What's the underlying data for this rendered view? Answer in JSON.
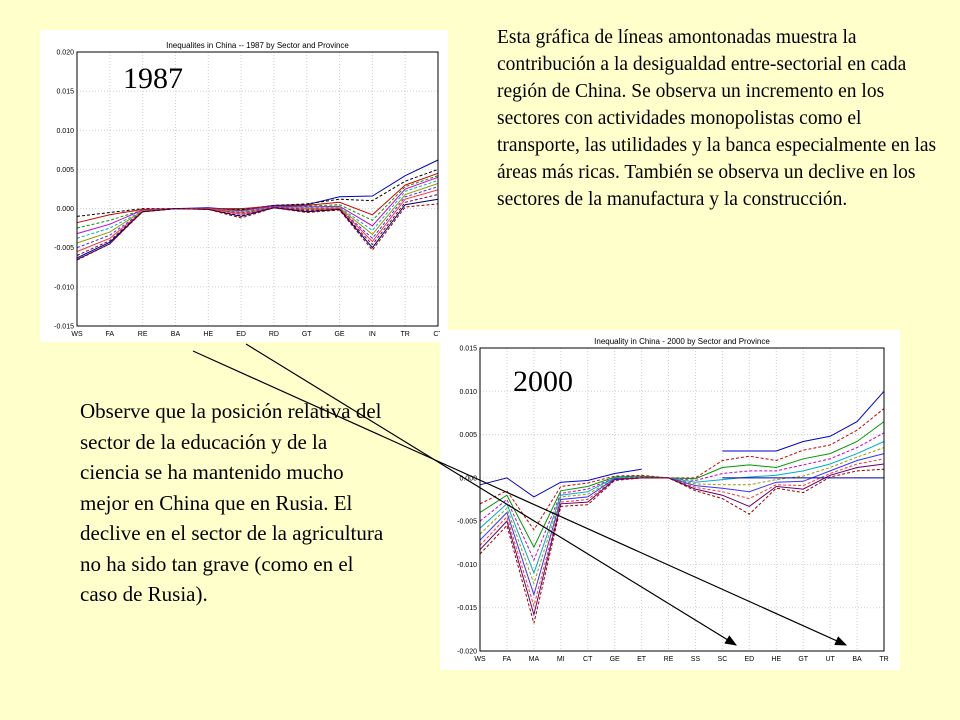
{
  "chart_data": [
    {
      "type": "line",
      "title": "Inequalites in China -- 1987 by Sector and Province",
      "year_label": "1987",
      "categories": [
        "WS",
        "FA",
        "RE",
        "BA",
        "HE",
        "ED",
        "RD",
        "GT",
        "GE",
        "IN",
        "TR",
        "CT"
      ],
      "ylim": [
        -0.015,
        0.02
      ],
      "yticks": [
        "0.020",
        "0.015",
        "0.010",
        "0.005",
        "0.000",
        "-0.005",
        "-0.010",
        "-0.015"
      ],
      "ytick_values": [
        0.02,
        0.015,
        0.01,
        0.005,
        0.0,
        -0.005,
        -0.01,
        -0.015
      ],
      "grid": true,
      "series": [
        {
          "color": "#0000cc",
          "values": [
            -0.0065,
            -0.0045,
            -0.0003,
            0.0,
            0.0001,
            -0.0002,
            0.0004,
            0.0005,
            0.0015,
            0.0016,
            0.0042,
            0.0062
          ]
        },
        {
          "color": "#000000",
          "values": [
            -0.001,
            -0.0005,
            0.0,
            0.0,
            0.0,
            -0.0001,
            0.0004,
            0.0006,
            0.0012,
            0.001,
            0.0035,
            0.005
          ]
        },
        {
          "color": "#cc0000",
          "values": [
            -0.0018,
            -0.0008,
            -0.0001,
            0.0,
            0.0,
            0.0,
            0.0003,
            0.0004,
            0.0008,
            -0.0008,
            0.003,
            0.0045
          ]
        },
        {
          "color": "#009900",
          "values": [
            -0.0025,
            -0.0015,
            -0.0002,
            0.0,
            0.0,
            -0.0002,
            0.0003,
            0.0003,
            0.0005,
            -0.0015,
            0.0028,
            0.0042
          ]
        },
        {
          "color": "#cc00cc",
          "values": [
            -0.0032,
            -0.002,
            -0.0002,
            0.0,
            0.0,
            -0.0003,
            0.0003,
            0.0002,
            0.0003,
            -0.0022,
            0.0025,
            0.004
          ]
        },
        {
          "color": "#00aacc",
          "values": [
            -0.0038,
            -0.0025,
            -0.0003,
            0.0,
            0.0,
            -0.0004,
            0.0002,
            0.0001,
            0.0002,
            -0.0028,
            0.0022,
            0.0036
          ]
        },
        {
          "color": "#999900",
          "values": [
            -0.0044,
            -0.003,
            -0.0003,
            0.0,
            0.0,
            -0.0005,
            0.0002,
            0.0,
            0.0001,
            -0.0033,
            0.0018,
            0.0032
          ]
        },
        {
          "color": "#3333ff",
          "values": [
            -0.005,
            -0.0034,
            -0.0004,
            0.0,
            0.0,
            -0.0006,
            0.0002,
            -0.0001,
            0.0,
            -0.0038,
            0.0015,
            0.0028
          ]
        },
        {
          "color": "#ff3333",
          "values": [
            -0.0055,
            -0.0038,
            -0.0004,
            0.0,
            0.0,
            -0.0007,
            0.0001,
            -0.0002,
            0.0,
            -0.0042,
            0.0012,
            0.0024
          ]
        },
        {
          "color": "#660066",
          "values": [
            -0.006,
            -0.0041,
            -0.0004,
            0.0,
            -0.0001,
            -0.0009,
            0.0001,
            -0.0003,
            -0.0001,
            -0.0046,
            0.0008,
            0.0018
          ]
        },
        {
          "color": "#000066",
          "values": [
            -0.0063,
            -0.0043,
            -0.0004,
            0.0,
            -0.0001,
            -0.001,
            0.0001,
            -0.0004,
            -0.0001,
            -0.005,
            0.0005,
            0.0012
          ]
        },
        {
          "color": "#990000",
          "values": [
            -0.0066,
            -0.0045,
            -0.0004,
            0.0,
            -0.0001,
            -0.0012,
            0.0001,
            -0.0005,
            -0.0002,
            -0.0053,
            0.0002,
            0.0006
          ]
        }
      ]
    },
    {
      "type": "line",
      "title": "Inequality in China - 2000 by Sector and Province",
      "year_label": "2000",
      "categories": [
        "WS",
        "FA",
        "MA",
        "MI",
        "CT",
        "GE",
        "ET",
        "RE",
        "SS",
        "SC",
        "ED",
        "HE",
        "GT",
        "UT",
        "BA",
        "TR"
      ],
      "ylim": [
        -0.02,
        0.015
      ],
      "yticks": [
        "0.015",
        "0.010",
        "0.005",
        "0.000",
        "-0.005",
        "-0.010",
        "-0.015",
        "-0.020"
      ],
      "ytick_values": [
        0.015,
        0.01,
        0.005,
        0.0,
        -0.005,
        -0.01,
        -0.015,
        -0.02
      ],
      "grid": true,
      "segment_breaks": [
        6
      ],
      "series": [
        {
          "color": "#0000cc",
          "values": [
            -0.0008,
            0.0,
            -0.0022,
            -0.0005,
            -0.0003,
            0.0005,
            0.001,
            null,
            null,
            0.0031,
            0.0031,
            0.0031,
            0.0042,
            0.0048,
            0.0065,
            0.01
          ]
        },
        {
          "color": "#cc0000",
          "values": [
            -0.003,
            -0.0015,
            -0.006,
            -0.001,
            -0.0006,
            0.0002,
            0.0003,
            0.0,
            0.0,
            0.002,
            0.0025,
            0.002,
            0.0032,
            0.0038,
            0.0055,
            0.008
          ]
        },
        {
          "color": "#009900",
          "values": [
            -0.004,
            -0.002,
            -0.008,
            -0.0015,
            -0.001,
            0.0001,
            0.0002,
            0.0,
            -0.0001,
            0.0012,
            0.0015,
            0.0012,
            0.0022,
            0.0028,
            0.0042,
            0.0065
          ]
        },
        {
          "color": "#cc00cc",
          "values": [
            -0.005,
            -0.0025,
            -0.0095,
            -0.0018,
            -0.0013,
            0.0,
            0.0001,
            0.0,
            -0.0003,
            0.0005,
            0.0008,
            0.0008,
            0.0015,
            0.0022,
            0.0035,
            0.0052
          ]
        },
        {
          "color": "#00aacc",
          "values": [
            -0.0058,
            -0.003,
            -0.011,
            -0.002,
            -0.0016,
            0.0,
            0.0,
            0.0,
            -0.0005,
            -0.0002,
            0.0001,
            0.0003,
            0.0008,
            0.0016,
            0.0028,
            0.0042
          ]
        },
        {
          "color": "#999900",
          "values": [
            -0.0065,
            -0.0035,
            -0.0122,
            -0.0022,
            -0.0019,
            -0.0001,
            0.0,
            0.0,
            -0.0007,
            -0.0008,
            -0.0008,
            -0.0002,
            0.0002,
            0.0012,
            0.0024,
            0.0035
          ]
        },
        {
          "color": "#3333ff",
          "values": [
            -0.0072,
            -0.004,
            -0.0135,
            -0.0025,
            -0.0022,
            -0.0001,
            0.0,
            0.0,
            -0.0009,
            -0.0012,
            -0.0016,
            -0.0005,
            -0.0004,
            0.0008,
            0.002,
            0.0028
          ]
        },
        {
          "color": "#ff3333",
          "values": [
            -0.0078,
            -0.0045,
            -0.0148,
            -0.0028,
            -0.0025,
            -0.0002,
            0.0,
            0.0,
            -0.0011,
            -0.0016,
            -0.0024,
            -0.0008,
            -0.0009,
            0.0005,
            0.0016,
            0.0022
          ]
        },
        {
          "color": "#660066",
          "values": [
            -0.0083,
            -0.005,
            -0.0158,
            -0.003,
            -0.0028,
            -0.0002,
            0.0,
            0.0,
            -0.0013,
            -0.002,
            -0.0033,
            -0.001,
            -0.0013,
            0.0003,
            0.0012,
            0.0016
          ]
        },
        {
          "color": "#990000",
          "values": [
            -0.0088,
            -0.0055,
            -0.0168,
            -0.0033,
            -0.0031,
            -0.0003,
            0.0,
            0.0,
            -0.0015,
            -0.0024,
            -0.0042,
            -0.0012,
            -0.0017,
            0.0001,
            0.0008,
            0.001
          ]
        },
        {
          "color": "#0000aa",
          "values": [
            null,
            null,
            null,
            null,
            null,
            null,
            null,
            null,
            null,
            0.0,
            0.0,
            0.0,
            0.0,
            0.0,
            0.0,
            0.0
          ]
        }
      ]
    }
  ],
  "text": {
    "top_paragraph": "Esta gráfica de líneas amontonadas muestra la contribución a la desigualdad entre-sectorial en cada región de China.  Se observa un incremento en los sectores con actividades monopolistas como el transporte, las utilidades y la banca especialmente en las áreas más ricas. También se observa un declive en los sectores de la manufactura y la construcción.",
    "left_paragraph": "Observe que la posición relativa del sector de la educación y de la ciencia se ha mantenido mucho mejor en China que en Rusia.  El declive en el sector de la agricultura no ha sido tan grave (como en el caso de Rusia)."
  }
}
